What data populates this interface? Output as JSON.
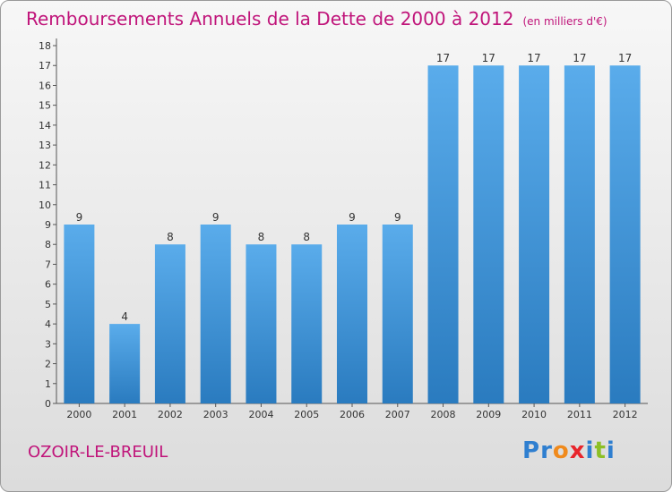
{
  "header": {
    "title": "Remboursements Annuels de la Dette de 2000 à 2012",
    "unit": "(en milliers d'€)"
  },
  "footer": {
    "commune": "OZOIR-LE-BREUIL",
    "brand": "Proxiti"
  },
  "colors": {
    "title": "#c0147a",
    "bar_top": "#5aaceb",
    "bar_bottom": "#2a7bbf"
  },
  "chart_data": {
    "type": "bar",
    "title": "Remboursements Annuels de la Dette de 2000 à 2012",
    "xlabel": "",
    "ylabel": "",
    "categories": [
      "2000",
      "2001",
      "2002",
      "2003",
      "2004",
      "2005",
      "2006",
      "2007",
      "2008",
      "2009",
      "2010",
      "2011",
      "2012"
    ],
    "values": [
      9,
      4,
      8,
      9,
      8,
      8,
      9,
      9,
      17,
      17,
      17,
      17,
      17
    ],
    "ylim": [
      0,
      18
    ],
    "yticks": [
      "0",
      "1",
      "2",
      "3",
      "4",
      "5",
      "6",
      "7",
      "8",
      "9",
      "10",
      "11",
      "12",
      "13",
      "14",
      "15",
      "16",
      "17",
      "18"
    ],
    "data_labels": true,
    "grid": false,
    "legend": "none"
  }
}
